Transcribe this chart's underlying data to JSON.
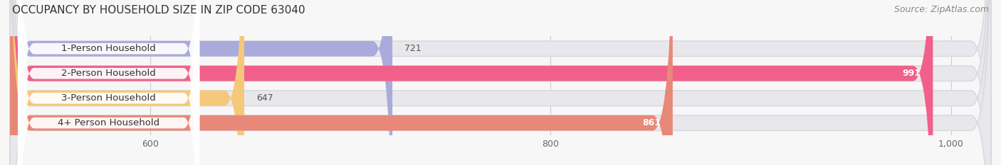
{
  "title": "OCCUPANCY BY HOUSEHOLD SIZE IN ZIP CODE 63040",
  "source": "Source: ZipAtlas.com",
  "categories": [
    "1-Person Household",
    "2-Person Household",
    "3-Person Household",
    "4+ Person Household"
  ],
  "values": [
    721,
    991,
    647,
    861
  ],
  "bar_colors": [
    "#aaaadc",
    "#f0608a",
    "#f5c87a",
    "#e88878"
  ],
  "bar_bg_color": "#e8e8ec",
  "xlim_min": 530,
  "xlim_max": 1020,
  "xticks": [
    600,
    800,
    1000
  ],
  "xticklabels": [
    "600",
    "800",
    "1,000"
  ],
  "title_fontsize": 11,
  "source_fontsize": 9,
  "label_fontsize": 9.5,
  "value_fontsize": 9,
  "tick_fontsize": 9,
  "bar_height": 0.62,
  "bar_gap": 0.38,
  "background_color": "#f7f7f7",
  "label_bg_color": "#ffffff",
  "label_text_color": "#333333",
  "value_inside_color": "#ffffff",
  "value_outside_color": "#555555"
}
